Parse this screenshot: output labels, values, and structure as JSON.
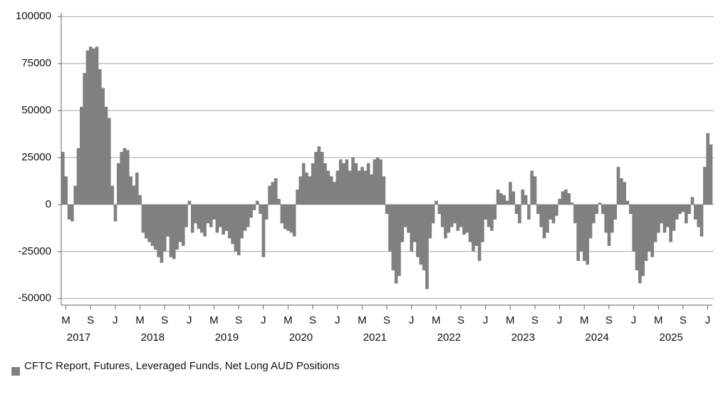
{
  "chart_data": {
    "type": "bar",
    "series": [
      {
        "name": "CFTC Report, Futures, Leveraged Funds, Net Long AUD Positions",
        "color": "#808080",
        "values": [
          28000,
          15000,
          -8000,
          -9000,
          10000,
          30000,
          52000,
          70000,
          82000,
          84000,
          83000,
          84000,
          72000,
          62000,
          52000,
          46000,
          10000,
          -9000,
          22000,
          28000,
          30000,
          29000,
          15000,
          10000,
          17000,
          5000,
          -15000,
          -18000,
          -20000,
          -22000,
          -24000,
          -28000,
          -31000,
          -25000,
          -17000,
          -28000,
          -29000,
          -24000,
          -20000,
          -22000,
          -12000,
          2000,
          -15000,
          -10000,
          -13000,
          -15000,
          -17000,
          -10000,
          -12000,
          -8000,
          -15000,
          -12000,
          -16000,
          -14000,
          -18000,
          -21000,
          -25000,
          -27000,
          -18000,
          -14000,
          -12000,
          -7000,
          -3000,
          2000,
          -5000,
          -28000,
          -8000,
          10000,
          12000,
          14000,
          3000,
          -10000,
          -13000,
          -14000,
          -15000,
          -17000,
          8000,
          15000,
          22000,
          17000,
          15000,
          22000,
          28000,
          31000,
          28000,
          22000,
          18000,
          15000,
          12000,
          18000,
          24000,
          22000,
          24000,
          18000,
          25000,
          22000,
          18000,
          20000,
          18000,
          22000,
          16000,
          24000,
          25000,
          24000,
          15000,
          -5000,
          -25000,
          -35000,
          -42000,
          -38000,
          -20000,
          -12000,
          -15000,
          -25000,
          -20000,
          -28000,
          -32000,
          -35000,
          -45000,
          -18000,
          -10000,
          2000,
          -5000,
          -12000,
          -18000,
          -15000,
          -12000,
          -10000,
          -14000,
          -12000,
          -16000,
          -15000,
          -20000,
          -25000,
          -22000,
          -30000,
          -20000,
          -8000,
          -12000,
          -14000,
          -8000,
          8000,
          6000,
          5000,
          2000,
          12000,
          7000,
          -5000,
          -10000,
          8000,
          5000,
          -8000,
          18000,
          15000,
          -5000,
          -12000,
          -18000,
          -15000,
          -8000,
          -10000,
          -6000,
          3000,
          7000,
          8000,
          6000,
          1000,
          -10000,
          -30000,
          -25000,
          -30000,
          -32000,
          -18000,
          -10000,
          -5000,
          1000,
          -5000,
          -15000,
          -22000,
          -15000,
          -8000,
          20000,
          14000,
          12000,
          2000,
          -5000,
          -25000,
          -35000,
          -42000,
          -38000,
          -30000,
          -25000,
          -28000,
          -20000,
          -15000,
          -10000,
          -15000,
          -12000,
          -20000,
          -14000,
          -8000,
          -5000,
          -4000,
          -10000,
          -5000,
          4000,
          -8000,
          -12000,
          -17000,
          20000,
          38000,
          32000
        ]
      }
    ],
    "categories": [
      null,
      "M",
      null,
      null,
      null,
      null,
      null,
      null,
      null,
      "S",
      null,
      null,
      null,
      null,
      null,
      null,
      null,
      "J",
      null,
      null,
      null,
      null,
      null,
      null,
      null,
      "M",
      null,
      null,
      null,
      null,
      null,
      null,
      null,
      "S",
      null,
      null,
      null,
      null,
      null,
      null,
      null,
      "J",
      null,
      null,
      null,
      null,
      null,
      null,
      null,
      "M",
      null,
      null,
      null,
      null,
      null,
      null,
      null,
      "S",
      null,
      null,
      null,
      null,
      null,
      null,
      null,
      "J",
      null,
      null,
      null,
      null,
      null,
      null,
      null,
      "M",
      null,
      null,
      null,
      null,
      null,
      null,
      null,
      "S",
      null,
      null,
      null,
      null,
      null,
      null,
      null,
      "J",
      null,
      null,
      null,
      null,
      null,
      null,
      null,
      "M",
      null,
      null,
      null,
      null,
      null,
      null,
      null,
      "S",
      null,
      null,
      null,
      null,
      null,
      null,
      null,
      "J",
      null,
      null,
      null,
      null,
      null,
      null,
      null,
      "M",
      null,
      null,
      null,
      null,
      null,
      null,
      null,
      "S",
      null,
      null,
      null,
      null,
      null,
      null,
      null,
      "J",
      null,
      null,
      null,
      null,
      null,
      null,
      null,
      "M",
      null,
      null,
      null,
      null,
      null,
      null,
      null,
      "S",
      null,
      null,
      null,
      null,
      null,
      null,
      null,
      "J",
      null,
      null,
      null,
      null,
      null,
      null,
      null,
      "M",
      null,
      null,
      null,
      null,
      null,
      null,
      null,
      "S",
      null,
      null,
      null,
      null,
      null,
      null,
      null,
      "J",
      null,
      null,
      null,
      null,
      null,
      null,
      null,
      "M",
      null,
      null,
      null,
      null,
      null,
      null,
      null,
      "S",
      null,
      null,
      null,
      null,
      null,
      null,
      null,
      "J",
      null
    ],
    "years": [
      null,
      "2017",
      null,
      null,
      null,
      null,
      null,
      null,
      null,
      null,
      null,
      null,
      null,
      null,
      null,
      null,
      null,
      null,
      null,
      null,
      null,
      null,
      null,
      null,
      null,
      "2018",
      null,
      null,
      null,
      null,
      null,
      null,
      null,
      null,
      null,
      null,
      null,
      null,
      null,
      null,
      null,
      null,
      null,
      null,
      null,
      null,
      null,
      null,
      null,
      "2019",
      null,
      null,
      null,
      null,
      null,
      null,
      null,
      null,
      null,
      null,
      null,
      null,
      null,
      null,
      null,
      null,
      null,
      null,
      null,
      null,
      null,
      null,
      null,
      "2020",
      null,
      null,
      null,
      null,
      null,
      null,
      null,
      null,
      null,
      null,
      null,
      null,
      null,
      null,
      null,
      null,
      null,
      null,
      null,
      null,
      null,
      null,
      null,
      "2021",
      null,
      null,
      null,
      null,
      null,
      null,
      null,
      null,
      null,
      null,
      null,
      null,
      null,
      null,
      null,
      null,
      null,
      null,
      null,
      null,
      null,
      null,
      null,
      "2022",
      null,
      null,
      null,
      null,
      null,
      null,
      null,
      null,
      null,
      null,
      null,
      null,
      null,
      null,
      null,
      null,
      null,
      null,
      null,
      null,
      null,
      null,
      null,
      "2023",
      null,
      null,
      null,
      null,
      null,
      null,
      null,
      null,
      null,
      null,
      null,
      null,
      null,
      null,
      null,
      null,
      null,
      null,
      null,
      null,
      null,
      null,
      null,
      "2024",
      null,
      null,
      null,
      null,
      null,
      null,
      null,
      null,
      null,
      null,
      null,
      null,
      null,
      null,
      null,
      null,
      null,
      null,
      null,
      null,
      null,
      null,
      null,
      "2025",
      null,
      null,
      null,
      null,
      null,
      null,
      null,
      null,
      null,
      null,
      null,
      null,
      null,
      null,
      null,
      null,
      null
    ],
    "ylim": [
      -53500,
      102000
    ],
    "yticks": [
      -50000,
      -25000,
      0,
      25000,
      50000,
      75000,
      100000
    ],
    "grid": true,
    "legend": "bottom-left"
  }
}
